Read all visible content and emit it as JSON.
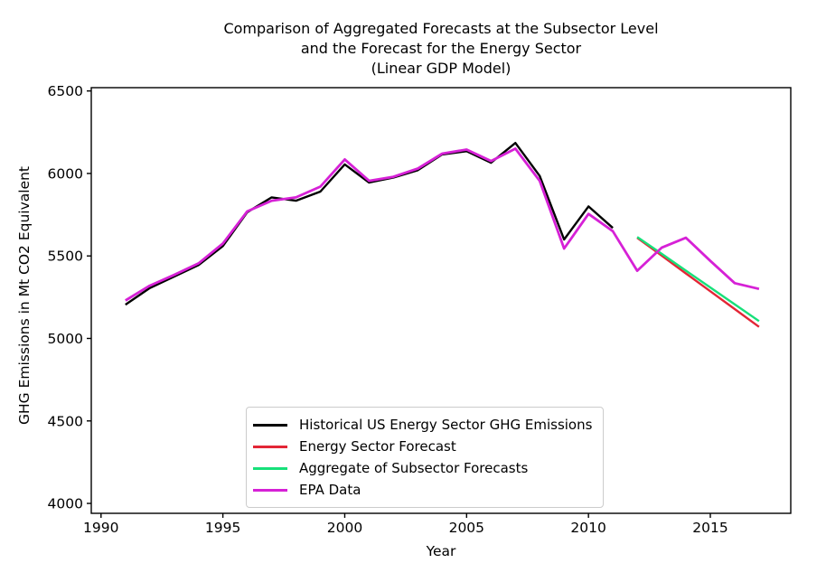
{
  "chart_data": {
    "type": "line",
    "title_lines": [
      "Comparison of Aggregated Forecasts at the Subsector Level",
      "and the Forecast for the Energy Sector",
      "(Linear GDP Model)"
    ],
    "xlabel": "Year",
    "ylabel": "GHG Emissions in Mt CO2 Equivalent",
    "xlim": [
      1989.6,
      2018.3
    ],
    "ylim": [
      3940,
      6520
    ],
    "xticks": [
      1990,
      1995,
      2000,
      2005,
      2010,
      2015
    ],
    "yticks": [
      4000,
      4500,
      5000,
      5500,
      6000,
      6500
    ],
    "grid": false,
    "legend_position": "lower center",
    "axis_color": "#000000",
    "series": [
      {
        "name": "Historical US Energy Sector GHG Emissions",
        "color": "#000000",
        "line_width": 2.4,
        "x": [
          1991,
          1992,
          1993,
          1994,
          1995,
          1996,
          1997,
          1998,
          1999,
          2000,
          2001,
          2002,
          2003,
          2004,
          2005,
          2006,
          2007,
          2008,
          2009,
          2010,
          2011
        ],
        "y": [
          5205,
          5305,
          5375,
          5445,
          5560,
          5765,
          5855,
          5835,
          5890,
          6055,
          5945,
          5975,
          6020,
          6115,
          6135,
          6065,
          6185,
          5985,
          5600,
          5800,
          5670
        ]
      },
      {
        "name": "Energy Sector Forecast",
        "color": "#e32636",
        "line_width": 2.4,
        "x": [
          2012,
          2013,
          2014,
          2015,
          2016,
          2017
        ],
        "y": [
          5610,
          5502,
          5394,
          5286,
          5178,
          5070
        ]
      },
      {
        "name": "Aggregate of Subsector Forecasts",
        "color": "#17e07a",
        "line_width": 2.4,
        "x": [
          2012,
          2013,
          2014,
          2015,
          2016,
          2017
        ],
        "y": [
          5615,
          5513,
          5411,
          5309,
          5207,
          5105
        ]
      },
      {
        "name": "EPA Data",
        "color": "#d621d6",
        "line_width": 2.8,
        "x": [
          1991,
          1992,
          1993,
          1994,
          1995,
          1996,
          1997,
          1998,
          1999,
          2000,
          2001,
          2002,
          2003,
          2004,
          2005,
          2006,
          2007,
          2008,
          2009,
          2010,
          2011,
          2012,
          2013,
          2014,
          2015,
          2016,
          2017
        ],
        "y": [
          5230,
          5320,
          5385,
          5455,
          5575,
          5770,
          5835,
          5855,
          5920,
          6085,
          5955,
          5980,
          6030,
          6120,
          6145,
          6075,
          6150,
          5955,
          5545,
          5755,
          5650,
          5410,
          5550,
          5610,
          5470,
          5335,
          5300
        ]
      }
    ]
  }
}
